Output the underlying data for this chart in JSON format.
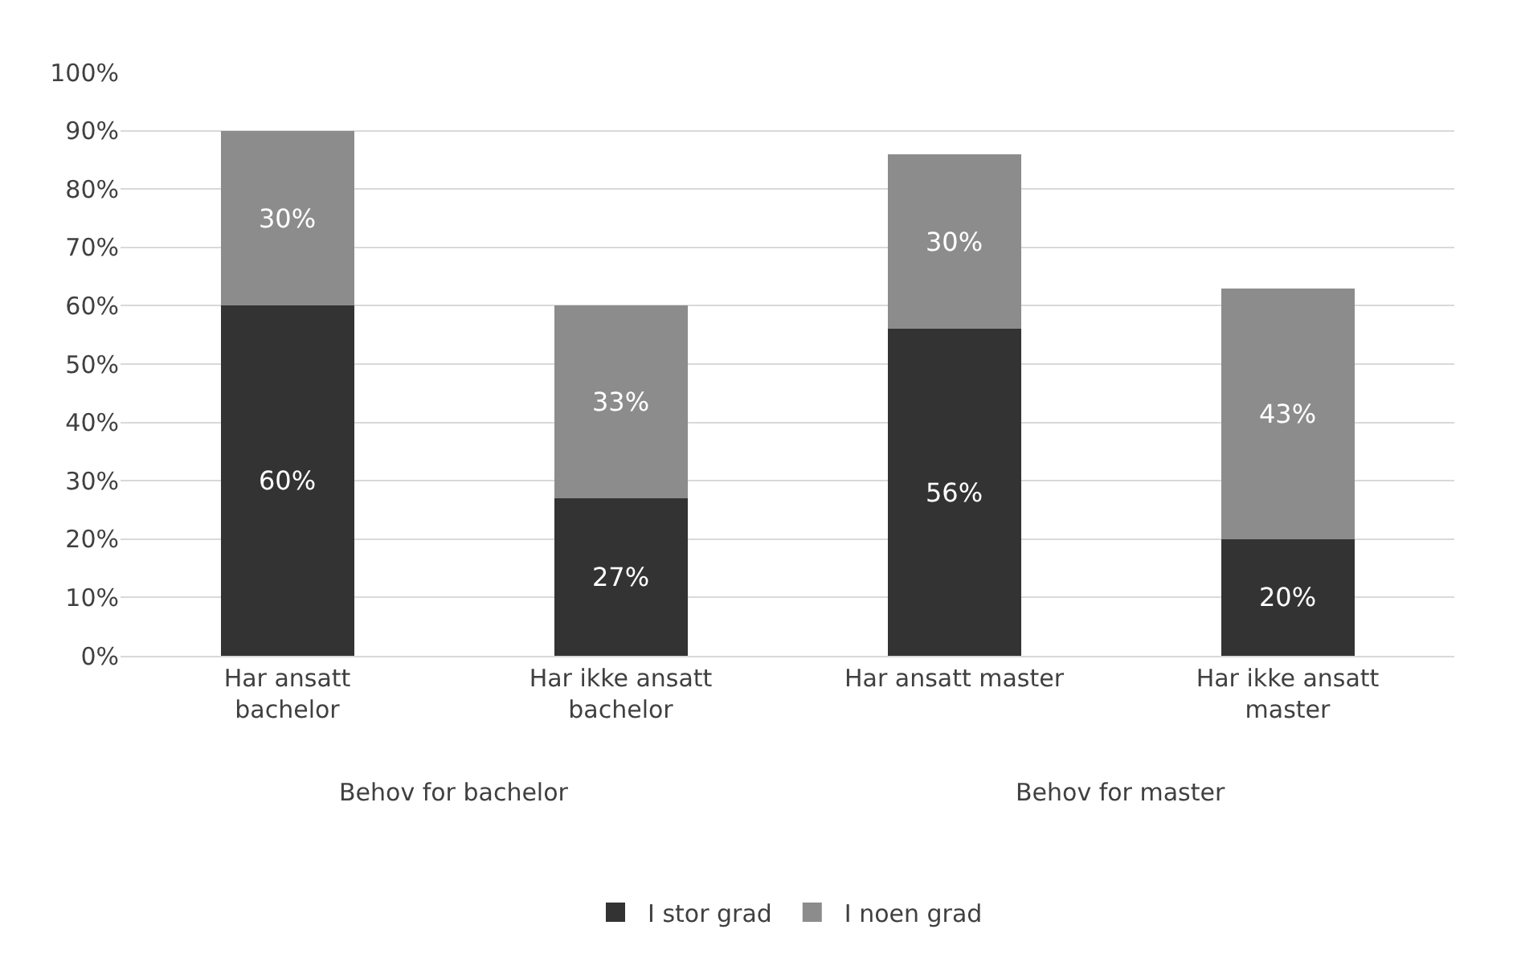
{
  "chart_data": {
    "type": "bar",
    "stacked": true,
    "categories": [
      "Har ansatt bachelor",
      "Har ikke ansatt bachelor",
      "Har ansatt master",
      "Har ikke ansatt master"
    ],
    "annotations": [
      "Behov for bachelor",
      "Behov for master"
    ],
    "series": [
      {
        "name": "I stor grad",
        "color": "#333333",
        "values": [
          60,
          27,
          56,
          20
        ],
        "value_labels": [
          "60%",
          "27%",
          "56%",
          "20%"
        ]
      },
      {
        "name": "I noen grad",
        "color": "#8c8c8c",
        "values": [
          30,
          33,
          30,
          43
        ],
        "value_labels": [
          "30%",
          "33%",
          "30%",
          "43%"
        ]
      }
    ],
    "ylim": [
      0,
      100
    ],
    "yticks": [
      {
        "value": 0,
        "label": "0%"
      },
      {
        "value": 10,
        "label": "10%"
      },
      {
        "value": 20,
        "label": "20%"
      },
      {
        "value": 30,
        "label": "30%"
      },
      {
        "value": 40,
        "label": "40%"
      },
      {
        "value": 50,
        "label": "50%"
      },
      {
        "value": 60,
        "label": "60%"
      },
      {
        "value": 70,
        "label": "70%"
      },
      {
        "value": 80,
        "label": "80%"
      },
      {
        "value": 90,
        "label": "90%"
      },
      {
        "value": 100,
        "label": "100%"
      }
    ],
    "grid": "y",
    "legend": "bottom"
  }
}
